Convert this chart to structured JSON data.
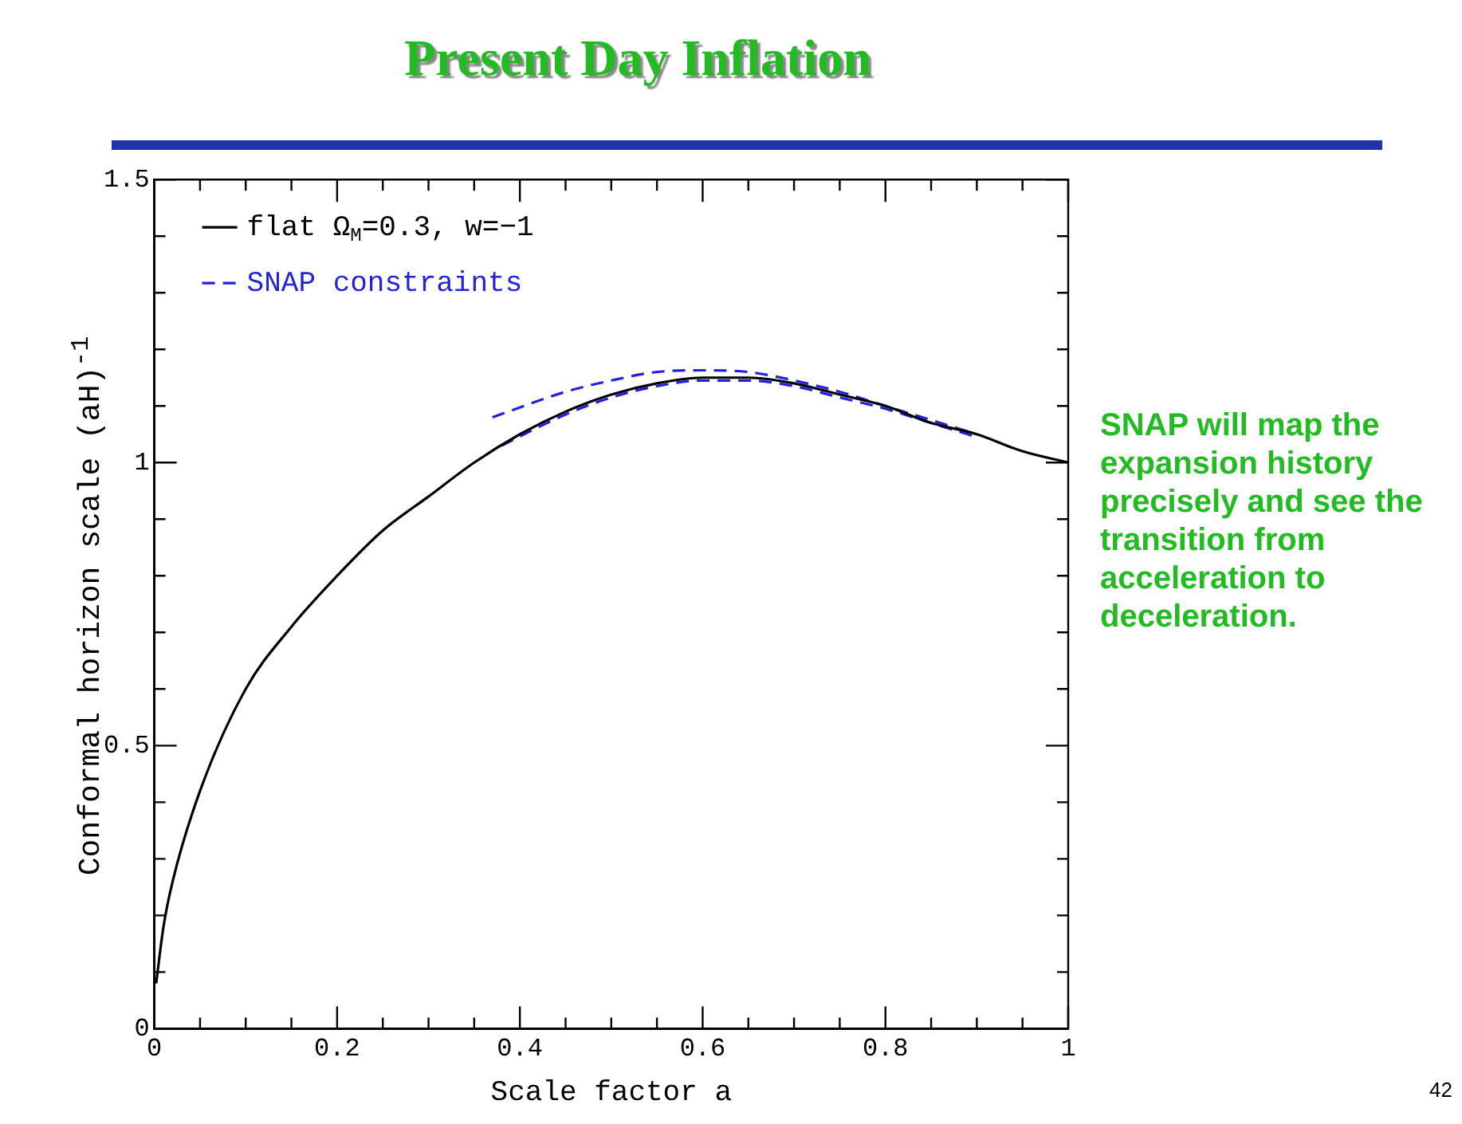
{
  "chart_data": {
    "type": "line",
    "title": "Present Day Inflation",
    "xlabel": "Scale factor a",
    "ylabel": "Conformal horizon scale (aH)$^{-1}$",
    "xlim": [
      0,
      1
    ],
    "ylim": [
      0,
      1.5
    ],
    "xticks": [
      0,
      {
        "value": 0.05,
        "label": null
      },
      {
        "value": 0.1,
        "label": null
      },
      {
        "value": 0.15,
        "label": null
      },
      0.2,
      {
        "value": 0.25,
        "label": null
      },
      {
        "value": 0.3,
        "label": null
      },
      {
        "value": 0.35,
        "label": null
      },
      0.4,
      {
        "value": 0.45,
        "label": null
      },
      {
        "value": 0.5,
        "label": null
      },
      {
        "value": 0.55,
        "label": null
      },
      0.6,
      {
        "value": 0.65,
        "label": null
      },
      {
        "value": 0.7,
        "label": null
      },
      {
        "value": 0.75,
        "label": null
      },
      0.8,
      {
        "value": 0.85,
        "label": null
      },
      {
        "value": 0.9,
        "label": null
      },
      {
        "value": 0.95,
        "label": null
      },
      1
    ],
    "yticks": [
      0,
      {
        "value": 0.1,
        "label": null
      },
      {
        "value": 0.2,
        "label": null
      },
      {
        "value": 0.3,
        "label": null
      },
      {
        "value": 0.4,
        "label": null
      },
      0.5,
      {
        "value": 0.6,
        "label": null
      },
      {
        "value": 0.7,
        "label": null
      },
      {
        "value": 0.8,
        "label": null
      },
      {
        "value": 0.9,
        "label": null
      },
      1,
      {
        "value": 1.1,
        "label": null
      },
      {
        "value": 1.2,
        "label": null
      },
      {
        "value": 1.3,
        "label": null
      },
      {
        "value": 1.4,
        "label": null
      },
      1.5
    ],
    "grid": false,
    "legend": "top left",
    "marker": "none",
    "series": [
      {
        "name": "flat Ω$_{M}$=0.3, w=−1",
        "color": "#000000",
        "line_style": "solid",
        "x": [
          0.002,
          0.01,
          0.02,
          0.05,
          0.1,
          0.15,
          0.2,
          0.25,
          0.3,
          0.35,
          0.4,
          0.45,
          0.5,
          0.55,
          0.6,
          0.65,
          0.7,
          0.75,
          0.8,
          0.85,
          0.9,
          0.95,
          1
        ],
        "values": [
          0.08,
          0.18,
          0.26,
          0.42,
          0.6,
          0.71,
          0.8,
          0.88,
          0.94,
          1.0,
          1.05,
          1.09,
          1.12,
          1.14,
          1.15,
          1.15,
          1.14,
          1.12,
          1.1,
          1.07,
          1.05,
          1.02,
          1.0
        ]
      },
      {
        "name": "SNAP constraints",
        "color": "#2222dd",
        "line_style": "dashed",
        "x": [
          0.37,
          0.45,
          0.5,
          0.55,
          0.6,
          0.65,
          0.7,
          0.75,
          0.8,
          0.85,
          0.9
        ],
        "values": [
          1.08,
          1.125,
          1.145,
          1.16,
          1.163,
          1.16,
          1.145,
          1.125,
          1.1,
          1.075,
          1.05
        ]
      },
      {
        "color": "#2222dd",
        "line_style": "dashed",
        "x": [
          0.38,
          0.45,
          0.5,
          0.55,
          0.6,
          0.65,
          0.7,
          0.75,
          0.8,
          0.85,
          0.9
        ],
        "values": [
          1.03,
          1.085,
          1.115,
          1.135,
          1.145,
          1.145,
          1.135,
          1.115,
          1.095,
          1.07,
          1.045
        ]
      }
    ],
    "annotations": [
      "SNAP will map the expansion history precisely and see the transition from acceleration to deceleration.",
      "42"
    ]
  }
}
